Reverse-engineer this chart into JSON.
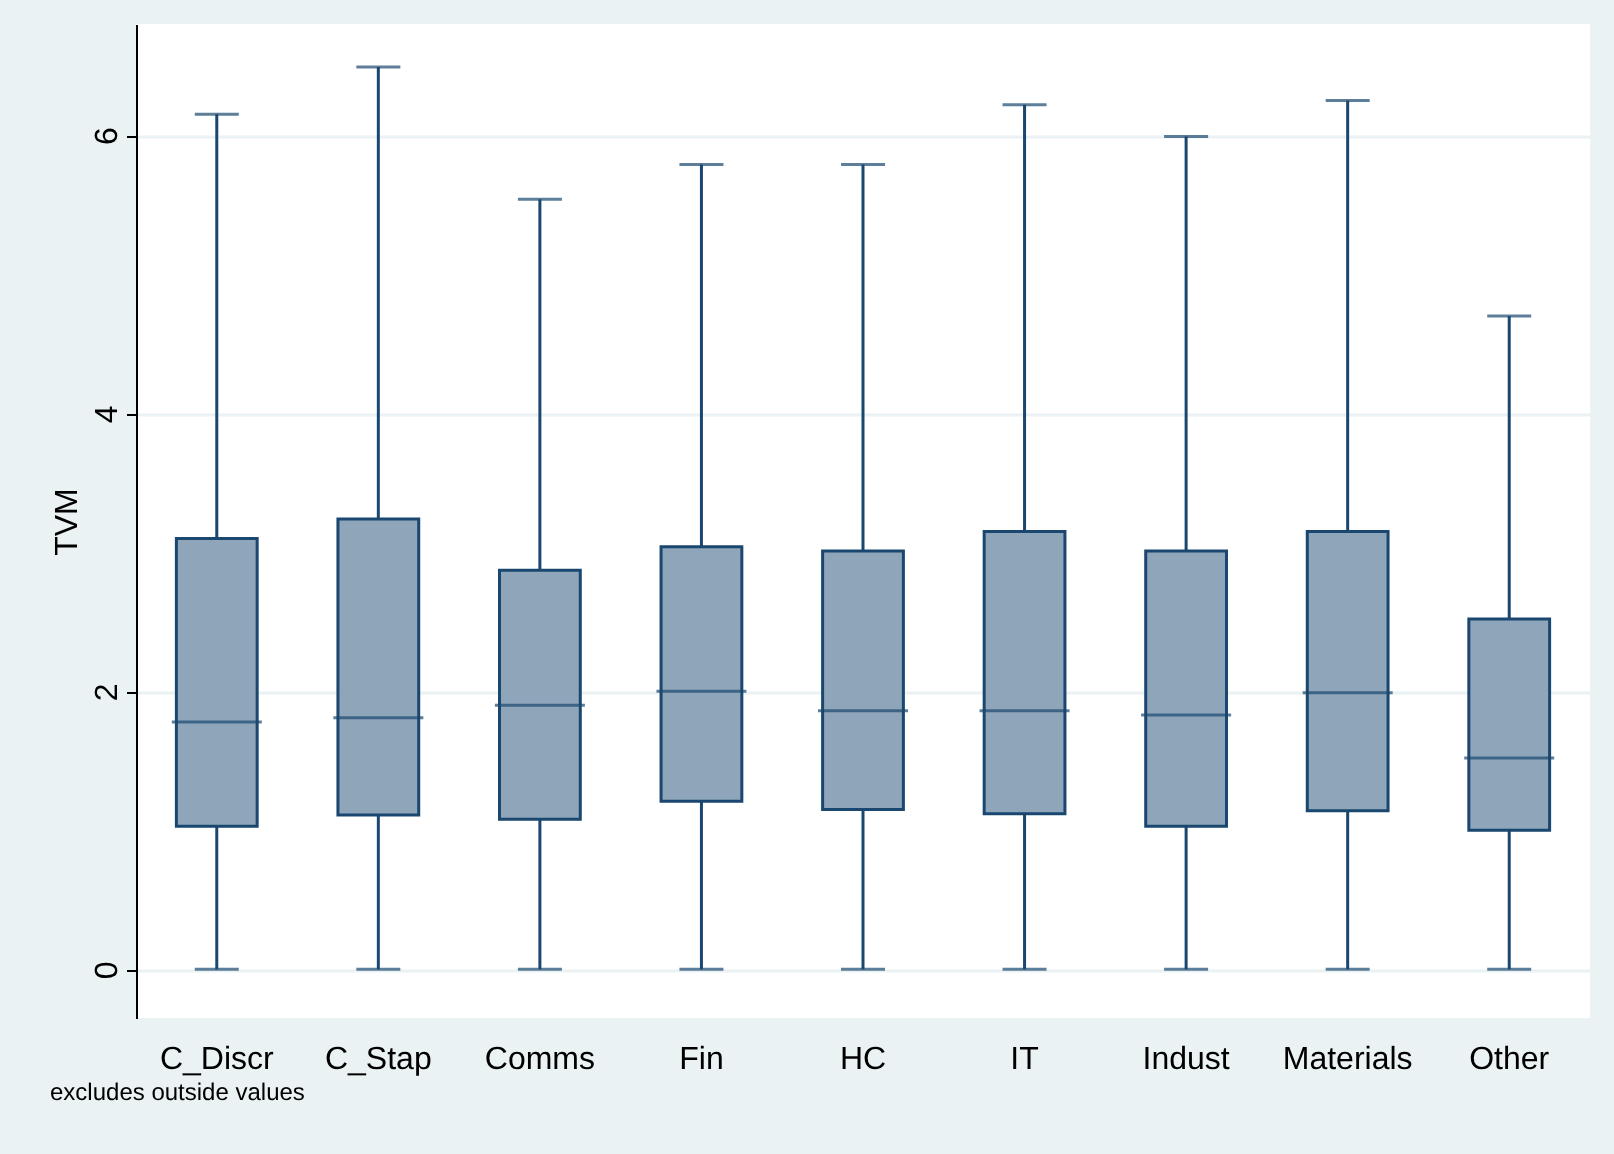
{
  "chart_data": {
    "type": "box",
    "ylabel": "TVM",
    "annotations": [
      "excludes outside values"
    ],
    "categories": [
      "C_Discr",
      "C_Stap",
      "Comms",
      "Fin",
      "HC",
      "IT",
      "Indust",
      "Materials",
      "Other"
    ],
    "ylim": [
      -0.35,
      6.8
    ],
    "yticks": [
      0,
      2,
      4,
      6
    ],
    "grid": "y",
    "color": "#8fa6ba",
    "boxes": [
      {
        "low": 0,
        "q1": 1.03,
        "median": 1.78,
        "q3": 3.1,
        "high": 6.15
      },
      {
        "low": 0,
        "q1": 1.11,
        "median": 1.81,
        "q3": 3.24,
        "high": 6.49
      },
      {
        "low": 0,
        "q1": 1.08,
        "median": 1.9,
        "q3": 2.87,
        "high": 5.54
      },
      {
        "low": 0,
        "q1": 1.21,
        "median": 2.0,
        "q3": 3.04,
        "high": 5.79
      },
      {
        "low": 0,
        "q1": 1.15,
        "median": 1.86,
        "q3": 3.01,
        "high": 5.79
      },
      {
        "low": 0,
        "q1": 1.12,
        "median": 1.86,
        "q3": 3.15,
        "high": 6.22
      },
      {
        "low": 0,
        "q1": 1.03,
        "median": 1.83,
        "q3": 3.01,
        "high": 5.99
      },
      {
        "low": 0,
        "q1": 1.14,
        "median": 1.99,
        "q3": 3.15,
        "high": 6.25
      },
      {
        "low": 0,
        "q1": 1.0,
        "median": 1.52,
        "q3": 2.52,
        "high": 4.7
      }
    ]
  }
}
